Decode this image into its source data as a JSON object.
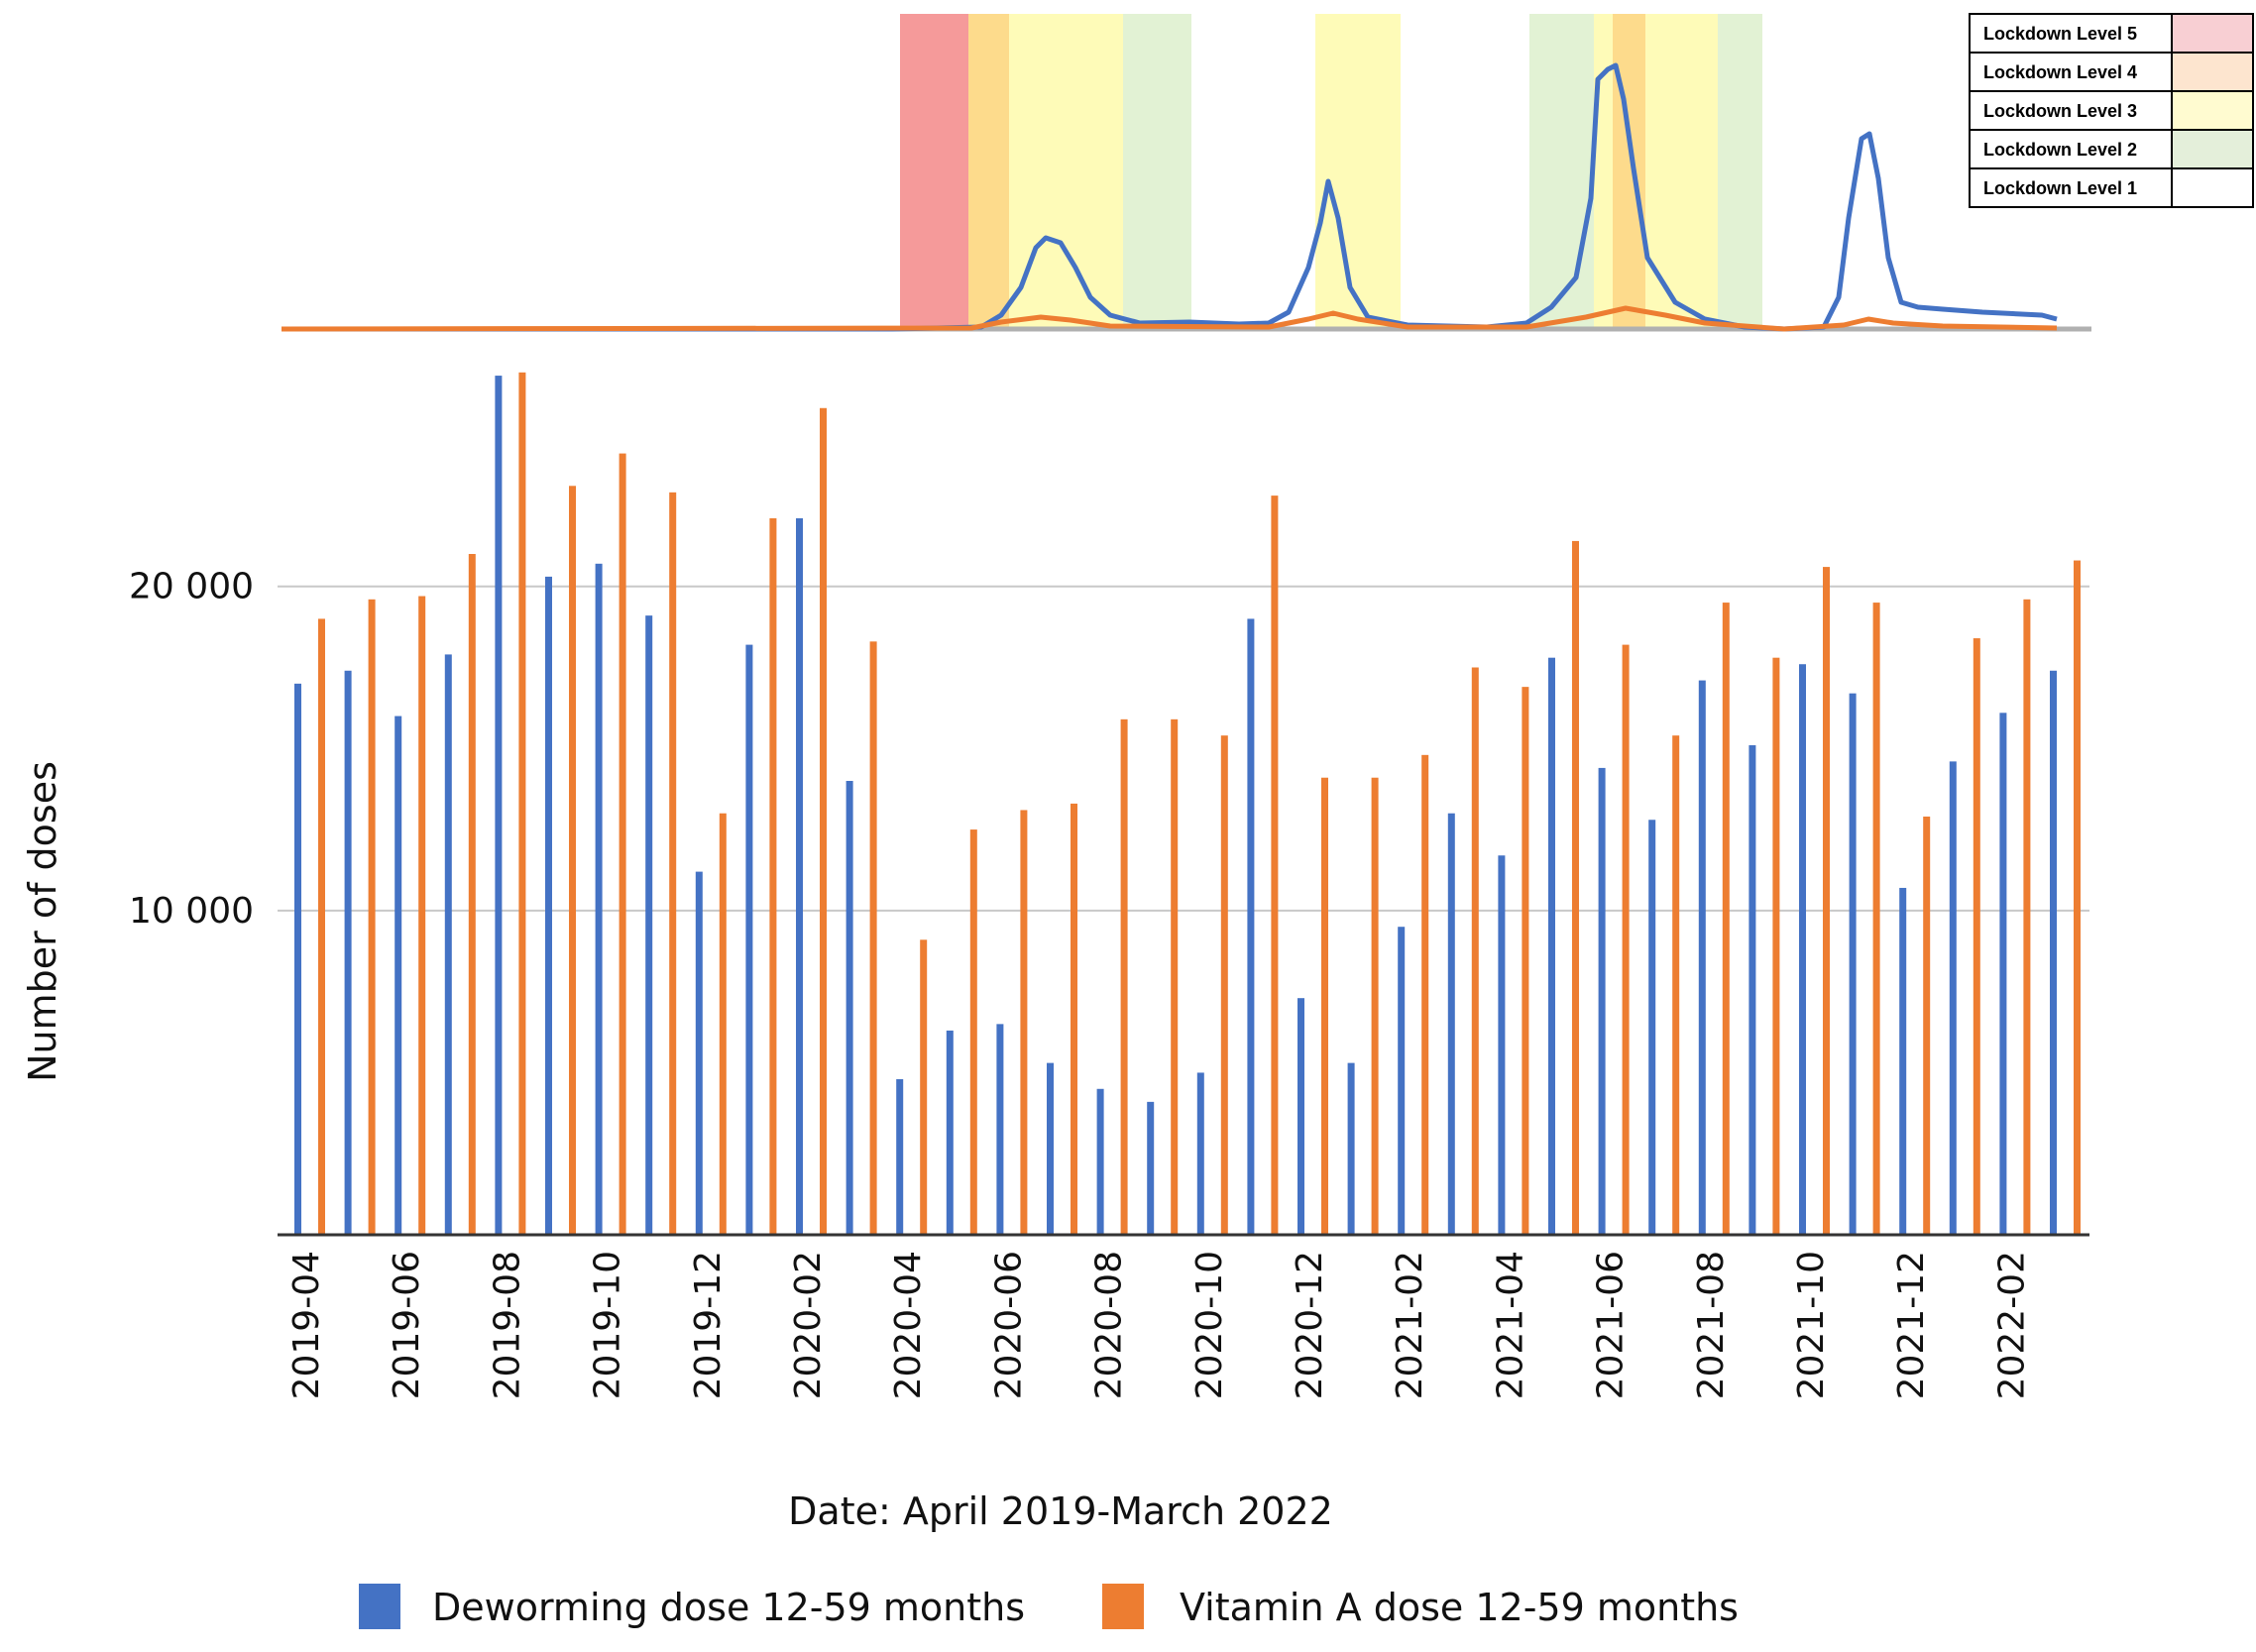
{
  "chart_data": {
    "type": "bar",
    "title": "",
    "xlabel": "Date: April 2019-March 2022",
    "ylabel": "Number of doses",
    "ylim": [
      0,
      28000
    ],
    "yticks": [
      10000,
      20000
    ],
    "ytick_labels": [
      "10 000",
      "20 000"
    ],
    "categories": [
      "2019-04",
      "2019-05",
      "2019-06",
      "2019-07",
      "2019-08",
      "2019-09",
      "2019-10",
      "2019-11",
      "2019-12",
      "2020-01",
      "2020-02",
      "2020-03",
      "2020-04",
      "2020-05",
      "2020-06",
      "2020-07",
      "2020-08",
      "2020-09",
      "2020-10",
      "2020-11",
      "2020-12",
      "2021-01",
      "2021-02",
      "2021-03",
      "2021-04",
      "2021-05",
      "2021-06",
      "2021-07",
      "2021-08",
      "2021-09",
      "2021-10",
      "2021-11",
      "2021-12",
      "2022-01",
      "2022-02",
      "2022-03"
    ],
    "xtick_labels": [
      "2019-04",
      "2019-06",
      "2019-08",
      "2019-10",
      "2019-12",
      "2020-02",
      "2020-04",
      "2020-06",
      "2020-08",
      "2020-10",
      "2020-12",
      "2021-02",
      "2021-04",
      "2021-06",
      "2021-08",
      "2021-10",
      "2021-12",
      "2022-02"
    ],
    "series": [
      {
        "name": "Deworming dose 12-59 months",
        "color": "#4472c4",
        "values": [
          17000,
          17400,
          16000,
          17900,
          26500,
          20300,
          20700,
          19100,
          11200,
          18200,
          22100,
          14000,
          4800,
          6300,
          6500,
          5300,
          4500,
          4100,
          5000,
          19000,
          7300,
          5300,
          9500,
          13000,
          11700,
          17800,
          14400,
          12800,
          17100,
          15100,
          17600,
          16700,
          10700,
          14600,
          16100,
          17400
        ]
      },
      {
        "name": "Vitamin A dose 12-59 months",
        "color": "#ed7d31",
        "values": [
          19000,
          19600,
          19700,
          21000,
          26600,
          23100,
          24100,
          22900,
          13000,
          22100,
          25500,
          18300,
          9100,
          12500,
          13100,
          13300,
          15900,
          15900,
          15400,
          22800,
          14100,
          14100,
          14800,
          17500,
          16900,
          21400,
          18200,
          15400,
          19500,
          17800,
          20600,
          19500,
          12900,
          18400,
          19600,
          20800
        ]
      }
    ]
  },
  "lockdown_legend": [
    {
      "label": "Lockdown Level 5",
      "color": "#f8cfd3"
    },
    {
      "label": "Lockdown Level 4",
      "color": "#fde5cf"
    },
    {
      "label": "Lockdown Level 3",
      "color": "#fffbd0"
    },
    {
      "label": "Lockdown Level 2",
      "color": "#e4efda"
    },
    {
      "label": "Lockdown Level 1",
      "color": "#ffffff"
    }
  ],
  "overlay_colors": {
    "level5": "#f59a9a",
    "level4": "#fddb8c",
    "level3": "#fefbb8",
    "level2": "#e2f2d4"
  },
  "covid_line_colors": {
    "cases": "#4472c4",
    "deaths": "#ed7d31",
    "baseline": "#b0b0b0"
  },
  "axis_color": "#333333",
  "grid_color": "#c8c8c8"
}
